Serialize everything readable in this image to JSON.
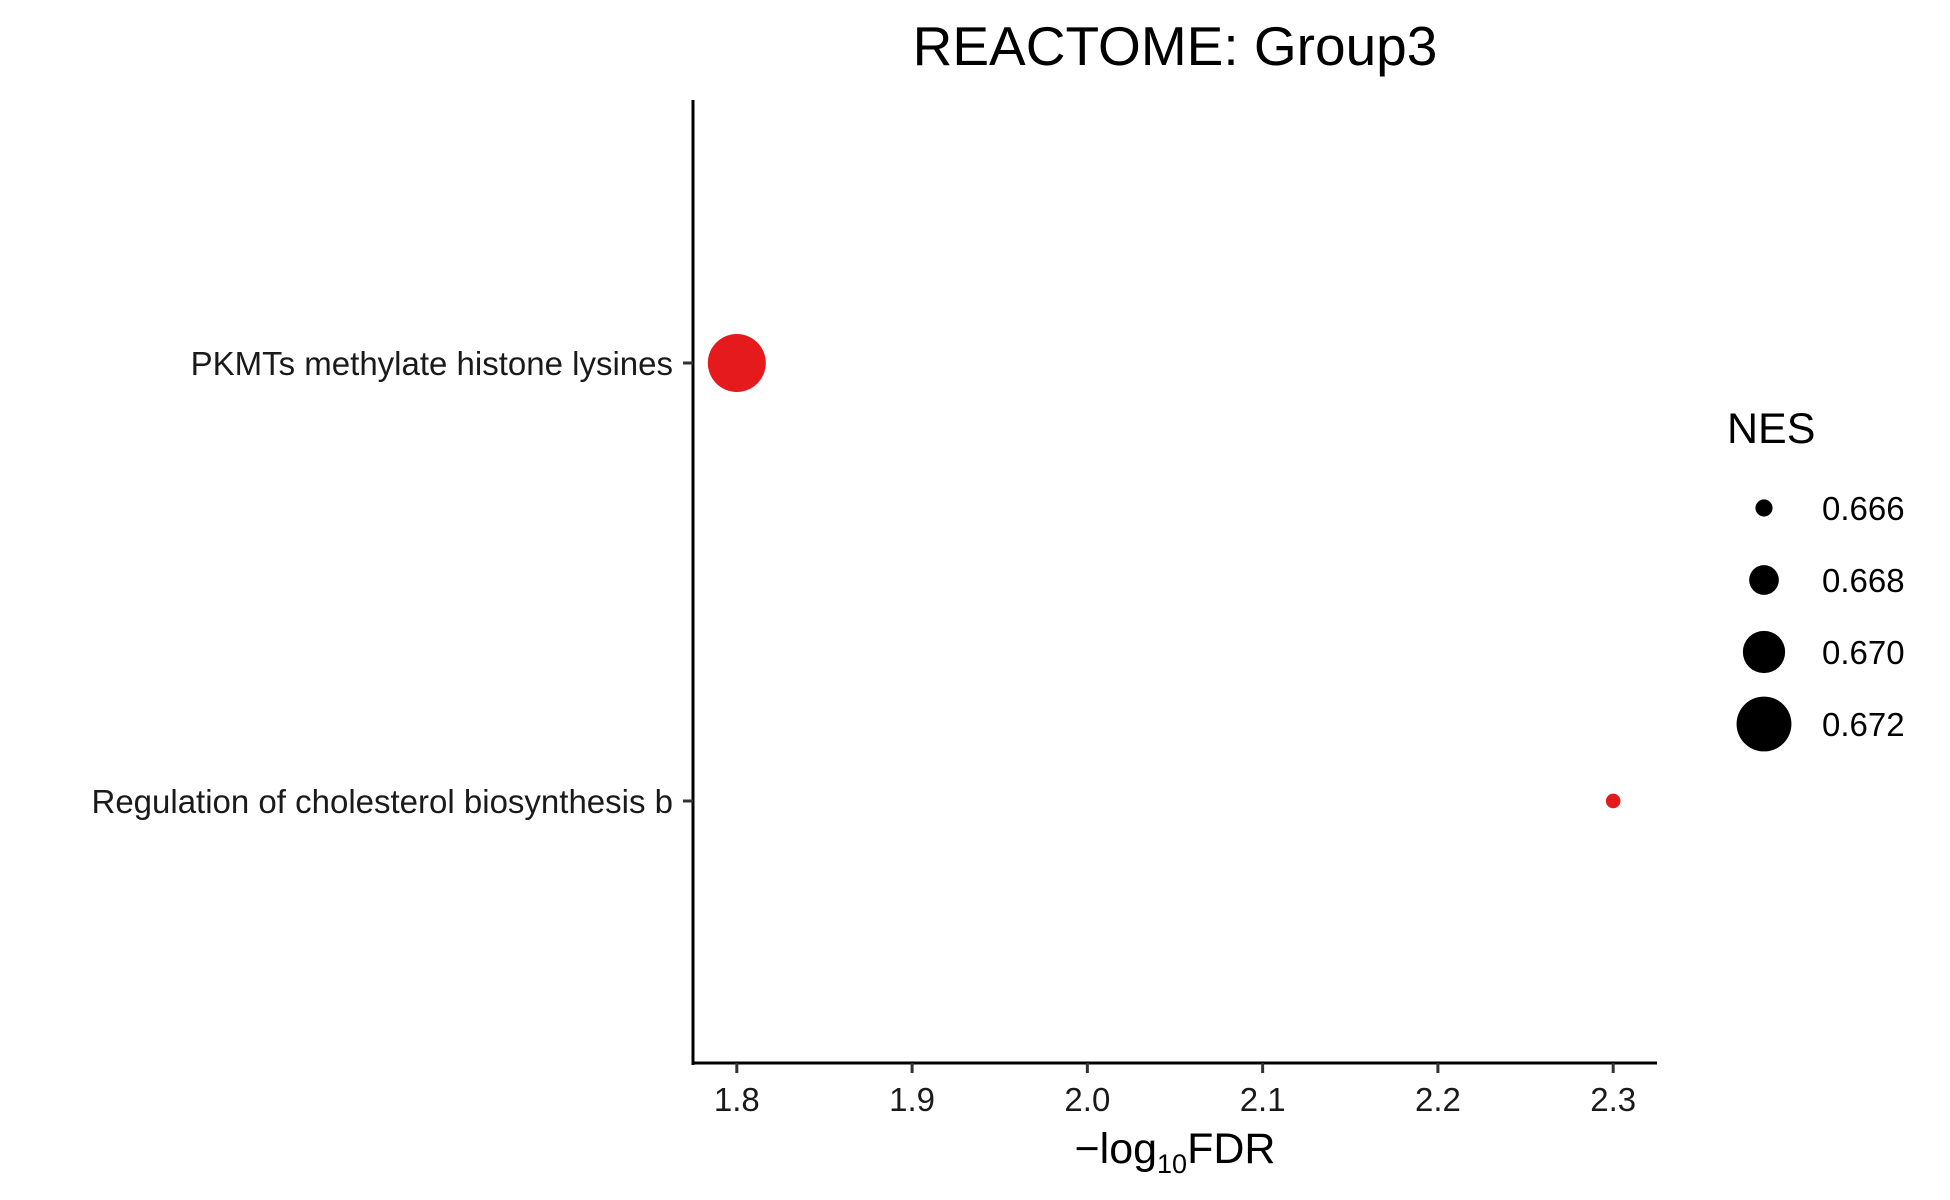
{
  "chart_data": {
    "type": "scatter",
    "title": "REACTOME: Group3",
    "xlabel_prefix": "−log",
    "xlabel_sub": "10",
    "xlabel_suffix": "FDR",
    "ylabel": "",
    "xlim": [
      1.775,
      2.325
    ],
    "xticks": [
      1.8,
      1.9,
      2.0,
      2.1,
      2.2,
      2.3
    ],
    "xtick_labels": [
      "1.8",
      "1.9",
      "2.0",
      "2.1",
      "2.2",
      "2.3"
    ],
    "categories": [
      "PKMTs methylate histone lysines",
      "Regulation of cholesterol biosynthesis b"
    ],
    "points": [
      {
        "category": "PKMTs methylate histone lysines",
        "x": 1.8,
        "nes": 0.6725
      },
      {
        "category": "Regulation of cholesterol biosynthesis b",
        "x": 2.3,
        "nes": 0.6656
      }
    ],
    "point_color": "#E41A1C",
    "grid": false,
    "legend": {
      "title": "NES",
      "placement": "right",
      "entries": [
        {
          "label": "0.666",
          "value": 0.666
        },
        {
          "label": "0.668",
          "value": 0.668
        },
        {
          "label": "0.670",
          "value": 0.67
        },
        {
          "label": "0.672",
          "value": 0.672
        }
      ],
      "color": "#000000"
    }
  }
}
